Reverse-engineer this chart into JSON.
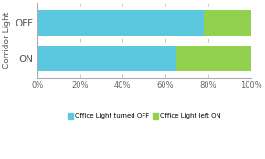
{
  "categories": [
    "ON",
    "OFF"
  ],
  "values_blue": [
    65,
    78
  ],
  "values_green": [
    35,
    22
  ],
  "color_blue": "#5BC8E0",
  "color_green": "#92D050",
  "legend_blue": "Office Light turned OFF",
  "legend_green": "Office Light left ON",
  "ylabel": "Corridor Light",
  "xlim": [
    0,
    100
  ],
  "xticks": [
    0,
    20,
    40,
    60,
    80,
    100
  ],
  "xtick_labels": [
    "0%",
    "20%",
    "40%",
    "60%",
    "80%",
    "100%"
  ],
  "background_color": "#ffffff",
  "bar_height": 0.72
}
